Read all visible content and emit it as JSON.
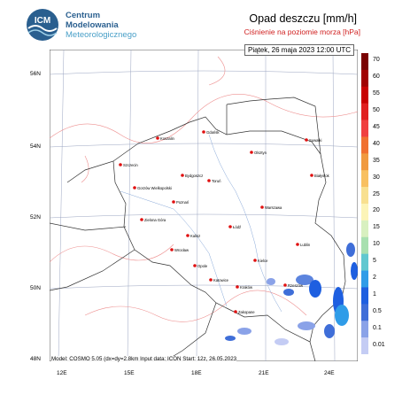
{
  "header": {
    "org_line1": "Centrum",
    "org_line2": "Modelowania",
    "org_line3": "Meteorologicznego",
    "logo_text": "ICM",
    "title": "Opad deszczu [mm/h]",
    "subtitle": "Ciśnienie na poziomie morza [hPa]"
  },
  "timestamp": "Piątek, 26 maja 2023 12:00 UTC",
  "footer": "Model: COSMO 5.05 (dx=dy=2.8km  Input data: ICON  Start: 12z, 26.05.2023",
  "lat_labels": [
    "56N",
    "54N",
    "52N",
    "50N",
    "48N"
  ],
  "lon_labels": [
    "12E",
    "15E",
    "18E",
    "21E",
    "24E"
  ],
  "colors": {
    "border": "#333333",
    "isobar": "#ee9090",
    "grid": "#9aa4c0",
    "city": "#e01010",
    "rain": "#2060e0"
  },
  "scale": {
    "labels": [
      "70",
      "60",
      "55",
      "50",
      "45",
      "40",
      "35",
      "30",
      "25",
      "20",
      "15",
      "10",
      "5",
      "2",
      "1",
      "0.5",
      "0.1",
      "0.01"
    ],
    "colors": [
      "#7a0000",
      "#a00000",
      "#c80000",
      "#e02020",
      "#f04040",
      "#f07030",
      "#f09a40",
      "#f8c060",
      "#f8e090",
      "#fcf4b8",
      "#d8f0c0",
      "#a8e0b0",
      "#60c8d0",
      "#2f9ce8",
      "#1e5fe0",
      "#3f6ed8",
      "#8aa2e8",
      "#c4ccf4"
    ]
  },
  "cities": [
    {
      "name": "Gdańsk",
      "id": "gdansk"
    },
    {
      "name": "Koszalin",
      "id": "koszalin"
    },
    {
      "name": "Olsztyn",
      "id": "olsztyn"
    },
    {
      "name": "Suwałki",
      "id": "suwalki"
    },
    {
      "name": "Szczecin",
      "id": "szczecin"
    },
    {
      "name": "Bydgoszcz",
      "id": "bydgoszcz"
    },
    {
      "name": "Toruń",
      "id": "torun"
    },
    {
      "name": "Białystok",
      "id": "bialystok"
    },
    {
      "name": "Gorzów Wielkopolski",
      "id": "gorzow"
    },
    {
      "name": "Poznań",
      "id": "poznan"
    },
    {
      "name": "Warszawa",
      "id": "warszawa"
    },
    {
      "name": "Zielona Góra",
      "id": "zielona"
    },
    {
      "name": "Łódź",
      "id": "lodz"
    },
    {
      "name": "Kalisz",
      "id": "kalisz"
    },
    {
      "name": "Lublin",
      "id": "lublin"
    },
    {
      "name": "Wrocław",
      "id": "wroclaw"
    },
    {
      "name": "Opole",
      "id": "opole"
    },
    {
      "name": "Kielce",
      "id": "kielce"
    },
    {
      "name": "Katowice",
      "id": "katowice"
    },
    {
      "name": "Kraków",
      "id": "krakow"
    },
    {
      "name": "Rzeszów",
      "id": "rzeszow"
    },
    {
      "name": "Zakopane",
      "id": "zakopane"
    }
  ]
}
